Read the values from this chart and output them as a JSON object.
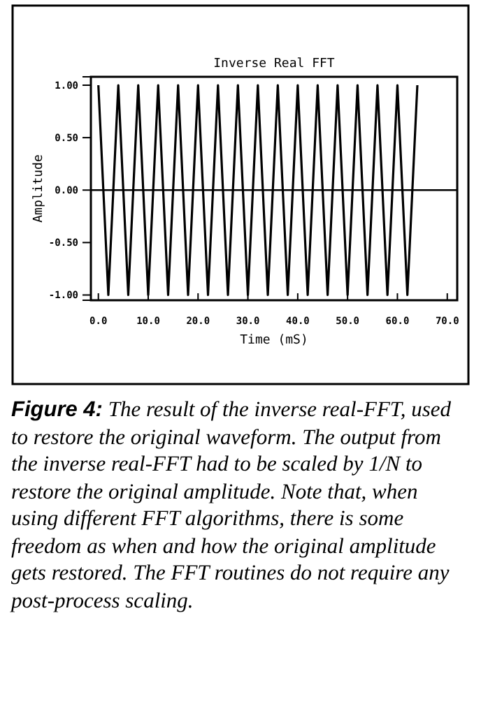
{
  "chart_data": {
    "type": "line",
    "title": "Inverse Real FFT",
    "xlabel": "Time (mS)",
    "ylabel": "Amplitude",
    "x": [
      0,
      1,
      2,
      3,
      4,
      5,
      6,
      7,
      8,
      9,
      10,
      11,
      12,
      13,
      14,
      15,
      16,
      17,
      18,
      19,
      20,
      21,
      22,
      23,
      24,
      25,
      26,
      27,
      28,
      29,
      30,
      31,
      32,
      33,
      34,
      35,
      36,
      37,
      38,
      39,
      40,
      41,
      42,
      43,
      44,
      45,
      46,
      47,
      48,
      49,
      50,
      51,
      52,
      53,
      54,
      55,
      56,
      57,
      58,
      59,
      60,
      61,
      62,
      63,
      64
    ],
    "values": [
      1,
      0,
      -1,
      0,
      1,
      0,
      -1,
      0,
      1,
      0,
      -1,
      0,
      1,
      0,
      -1,
      0,
      1,
      0,
      -1,
      0,
      1,
      0,
      -1,
      0,
      1,
      0,
      -1,
      0,
      1,
      0,
      -1,
      0,
      1,
      0,
      -1,
      0,
      1,
      0,
      -1,
      0,
      1,
      0,
      -1,
      0,
      1,
      0,
      -1,
      0,
      1,
      0,
      -1,
      0,
      1,
      0,
      -1,
      0,
      1,
      0,
      -1,
      0,
      1,
      0,
      -1,
      0,
      1
    ],
    "color": "#000000",
    "xlim": [
      -1.5,
      72
    ],
    "ylim": [
      -1.05,
      1.08
    ],
    "xticks": [
      {
        "value": 0,
        "label": "0.0"
      },
      {
        "value": 10,
        "label": "10.0"
      },
      {
        "value": 20,
        "label": "20.0"
      },
      {
        "value": 30,
        "label": "30.0"
      },
      {
        "value": 40,
        "label": "40.0"
      },
      {
        "value": 50,
        "label": "50.0"
      },
      {
        "value": 60,
        "label": "60.0"
      },
      {
        "value": 70,
        "label": "70.0"
      }
    ],
    "yticks": [
      {
        "value": -1,
        "label": "-1.00"
      },
      {
        "value": -0.5,
        "label": "-0.50"
      },
      {
        "value": 0,
        "label": "0.00"
      },
      {
        "value": 0.5,
        "label": "0.50"
      },
      {
        "value": 1,
        "label": "1.00"
      }
    ],
    "ref_lines": [
      {
        "axis": "y",
        "value": 0
      }
    ],
    "annotations": [
      "Figure 4:",
      "The result of the inverse real-FFT, used to restore the original waveform. The output from the inverse real-FFT had to be scaled by 1/N to restore the original amplitude. Note that, when using different FFT algorithms, there is some freedom as when and how the original amplitude gets restored. The FFT routines do not require any post-process scaling."
    ]
  }
}
